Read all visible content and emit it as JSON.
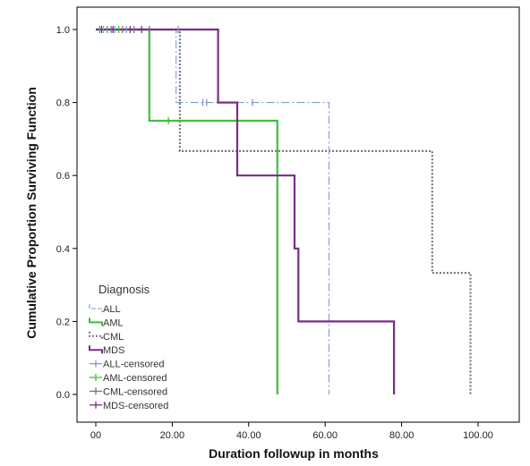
{
  "chart_data": {
    "type": "line",
    "step": true,
    "xlabel": "Duration followup in months",
    "ylabel": "Cumulative Proportion Surviving Function",
    "xlim": [
      0,
      100
    ],
    "ylim": [
      0,
      1.0
    ],
    "x_ticks": [
      0,
      20,
      40,
      60,
      80,
      100
    ],
    "x_tick_labels": [
      "00",
      "20.00",
      "40.00",
      "60.00",
      "80.00",
      "100.00"
    ],
    "y_ticks": [
      0,
      0.2,
      0.4,
      0.6,
      0.8,
      1.0
    ],
    "y_tick_labels": [
      "0.0",
      "0.2",
      "0.4",
      "0.6",
      "0.8",
      "1.0"
    ],
    "grid": false,
    "legend": {
      "title": "Diagnosis",
      "placement": "bottom-left",
      "entries": [
        "ALL",
        "AML",
        "CML",
        "MDS",
        "ALL-censored",
        "AML-censored",
        "CML-censored",
        "MDS-censored"
      ]
    },
    "series": [
      {
        "name": "ALL",
        "color": "#7f9cd0",
        "dash": "dashdot",
        "points": [
          [
            0,
            1.0
          ],
          [
            21,
            1.0
          ],
          [
            21,
            0.8
          ],
          [
            61,
            0.8
          ],
          [
            61,
            0.0
          ]
        ],
        "censored": [
          [
            2,
            1.0
          ],
          [
            5,
            1.0
          ],
          [
            8,
            1.0
          ],
          [
            21.5,
            1.0
          ],
          [
            28,
            0.8
          ],
          [
            29,
            0.8
          ],
          [
            41,
            0.8
          ]
        ]
      },
      {
        "name": "AML",
        "color": "#3cc13c",
        "dash": "solid",
        "points": [
          [
            0,
            1.0
          ],
          [
            14,
            1.0
          ],
          [
            14,
            0.75
          ],
          [
            47.5,
            0.75
          ],
          [
            47.5,
            0.0
          ]
        ],
        "censored": [
          [
            1,
            1.0
          ],
          [
            3,
            1.0
          ],
          [
            6,
            1.0
          ],
          [
            19,
            0.75
          ]
        ]
      },
      {
        "name": "CML",
        "color": "#777777",
        "dash": "dotted",
        "points": [
          [
            0,
            1.0
          ],
          [
            22,
            1.0
          ],
          [
            22,
            0.667
          ],
          [
            88,
            0.667
          ],
          [
            88,
            0.333
          ],
          [
            98,
            0.333
          ],
          [
            98,
            0.0
          ]
        ],
        "censored": [
          [
            4,
            1.0
          ],
          [
            7,
            1.0
          ],
          [
            10,
            1.0
          ],
          [
            14,
            1.0
          ]
        ]
      },
      {
        "name": "MDS",
        "color": "#7a2c86",
        "dash": "solid",
        "points": [
          [
            0,
            1.0
          ],
          [
            32,
            1.0
          ],
          [
            32,
            0.8
          ],
          [
            37,
            0.8
          ],
          [
            37,
            0.6
          ],
          [
            52,
            0.6
          ],
          [
            52,
            0.4
          ],
          [
            53,
            0.4
          ],
          [
            53,
            0.2
          ],
          [
            78,
            0.2
          ],
          [
            78,
            0.0
          ]
        ],
        "censored": [
          [
            1.5,
            1.0
          ],
          [
            4.5,
            1.0
          ],
          [
            9,
            1.0
          ],
          [
            12,
            1.0
          ]
        ]
      }
    ]
  }
}
